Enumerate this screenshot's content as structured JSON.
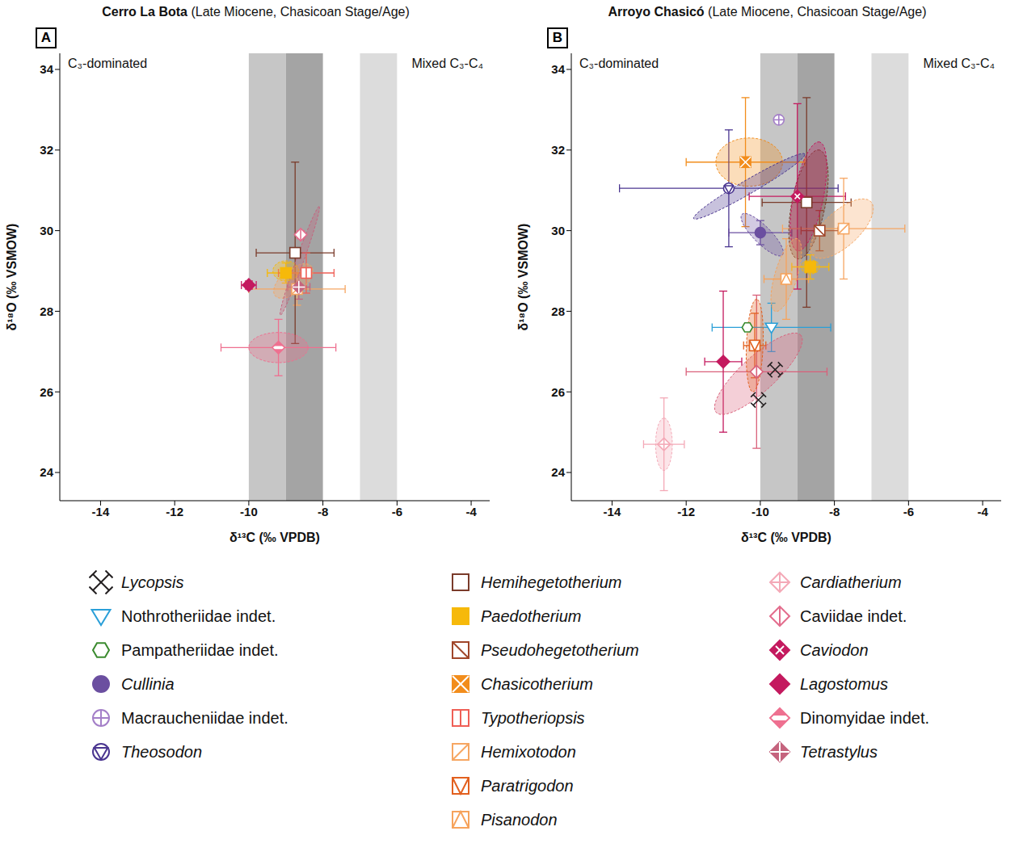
{
  "chart_data": [
    {
      "type": "scatter",
      "panel": "A",
      "title": "Cerro La Bota",
      "subtitle": "(Late Miocene, Chasicoan Stage/Age)",
      "annotations": [
        "C₃-dominated",
        "Mixed C₃-C₄"
      ],
      "x_label": "δ¹³C (‰ VPDB)",
      "y_label": "δ¹⁸O (‰ VSMOW)",
      "xlim": [
        -15.1,
        -3.5
      ],
      "xticks": [
        -14,
        -12,
        -10,
        -8,
        -6,
        -4
      ],
      "ylim": [
        23.3,
        34.4
      ],
      "yticks": [
        24,
        26,
        28,
        30,
        32,
        34
      ],
      "bands": [
        {
          "x": [
            -10,
            -9
          ],
          "color": "#c6c6c6"
        },
        {
          "x": [
            -9,
            -8
          ],
          "color": "#a4a4a4"
        },
        {
          "x": [
            -7,
            -6
          ],
          "color": "#dcdcdc"
        }
      ],
      "series": [
        {
          "name": "Dinomyidae indet.",
          "color": "#ee7090",
          "marker": "diamond_hband",
          "values": [
            {
              "x": -9.2,
              "y": 27.1,
              "x_error": 1.55,
              "y_error": 0.7
            }
          ],
          "ellipse": {
            "from": [
              -10.0,
              27.1
            ],
            "to": [
              -8.4,
              27.1
            ],
            "width": 0.75
          }
        },
        {
          "name": "Hemixotodon",
          "color": "#f6a662",
          "marker": "square_slash",
          "values": [
            {
              "x": -8.7,
              "y": 28.55,
              "x_error": 1.3,
              "y_error": 0.4
            }
          ],
          "ellipse": {
            "from": [
              -9.3,
              28.4
            ],
            "to": [
              -8.3,
              29.1
            ],
            "width": 0.6
          }
        },
        {
          "name": "Paedotherium",
          "color": "#f6b90a",
          "marker": "square_filled",
          "values": [
            {
              "x": -9.0,
              "y": 28.95,
              "x_error": 0.5,
              "y_error": 0.25
            }
          ],
          "ellipse": {
            "from": [
              -9.35,
              29.0
            ],
            "to": [
              -8.65,
              29.0
            ],
            "width": 0.5
          }
        },
        {
          "name": "Tetrastylus",
          "color": "#c5647e",
          "marker": "diamond_cross_filled",
          "values": [
            {
              "x": -8.65,
              "y": 28.6,
              "x_error": 0.3,
              "y_error": 0.3
            }
          ],
          "ellipse": {
            "from": [
              -9.15,
              27.9
            ],
            "to": [
              -8.1,
              30.6
            ],
            "width": 0.2
          }
        },
        {
          "name": "Hemihegetotherium",
          "color": "#7a3b2a",
          "marker": "square",
          "values": [
            {
              "x": -8.75,
              "y": 29.45,
              "x_error": 1.05,
              "y_error": 2.25
            }
          ]
        },
        {
          "name": "Typotheriopsis",
          "color": "#ef5f56",
          "marker": "square_vline",
          "values": [
            {
              "x": -8.45,
              "y": 28.95,
              "x_error": 0.75,
              "y_error": 0.5
            }
          ]
        },
        {
          "name": "Caviidae indet.",
          "color": "#e36d8d",
          "marker": "diamond_vline",
          "values": [
            {
              "x": -8.6,
              "y": 29.9,
              "x_error": 0.1,
              "y_error": 0.1
            }
          ]
        },
        {
          "name": "Lagostomus",
          "color": "#c41a5f",
          "marker": "diamond_filled",
          "values": [
            {
              "x": -10.0,
              "y": 28.65,
              "x_error": 0.2,
              "y_error": 0.1
            }
          ]
        }
      ]
    },
    {
      "type": "scatter",
      "panel": "B",
      "title": "Arroyo Chasicó",
      "subtitle": "(Late Miocene, Chasicoan Stage/Age)",
      "annotations": [
        "C₃-dominated",
        "Mixed C₃-C₄"
      ],
      "x_label": "δ¹³C (‰ VPDB)",
      "y_label": "δ¹⁸O (‰ VSMOW)",
      "xlim": [
        -15.1,
        -3.5
      ],
      "xticks": [
        -14,
        -12,
        -10,
        -8,
        -6,
        -4
      ],
      "ylim": [
        23.3,
        34.4
      ],
      "yticks": [
        24,
        26,
        28,
        30,
        32,
        34
      ],
      "bands": [
        {
          "x": [
            -10,
            -9
          ],
          "color": "#c6c6c6"
        },
        {
          "x": [
            -9,
            -8
          ],
          "color": "#a4a4a4"
        },
        {
          "x": [
            -7,
            -6
          ],
          "color": "#dcdcdc"
        }
      ],
      "series": [
        {
          "name": "Caviidae indet.",
          "color": "#d9607a",
          "marker": "diamond_vline",
          "values": [
            {
              "x": -10.1,
              "y": 26.5,
              "x_error": 1.9,
              "y_error": 1.9
            }
          ],
          "ellipse": {
            "from": [
              -11.2,
              25.5
            ],
            "to": [
              -8.9,
              27.4
            ],
            "width": 0.9
          }
        },
        {
          "name": "Cardiatherium",
          "color": "#f4a9b7",
          "marker": "diamond_plus",
          "values": [
            {
              "x": -12.6,
              "y": 24.7,
              "x_error": 0.55,
              "y_error": 1.15
            }
          ],
          "ellipse": {
            "from": [
              -12.6,
              24.05
            ],
            "to": [
              -12.6,
              25.35
            ],
            "width": 0.45
          }
        },
        {
          "name": "Paratrigodon",
          "color": "#e2601f",
          "marker": "square_v",
          "values": [
            {
              "x": -10.15,
              "y": 27.15,
              "x_error": 0.3,
              "y_error": 0.8
            }
          ],
          "ellipse": {
            "from": [
              -10.2,
              26.0
            ],
            "to": [
              -10.1,
              28.3
            ],
            "width": 0.45
          }
        },
        {
          "name": "Chasicotherium",
          "color": "#f28d1c",
          "marker": "square_x",
          "values": [
            {
              "x": -10.4,
              "y": 31.7,
              "x_error": 1.6,
              "y_error": 1.6
            }
          ],
          "ellipse": {
            "from": [
              -11.2,
              31.7
            ],
            "to": [
              -9.4,
              31.7
            ],
            "width": 1.2
          }
        },
        {
          "name": "Theosodon",
          "color": "#4a3590",
          "marker": "circle_triangle",
          "values": [
            {
              "x": -10.85,
              "y": 31.05,
              "x_error": 2.95,
              "y_error": 1.45
            }
          ],
          "ellipse": {
            "from": [
              -11.8,
              30.3
            ],
            "to": [
              -8.8,
              31.9
            ],
            "width": 0.35
          }
        },
        {
          "name": "Cullinia",
          "color": "#6b4fa0",
          "marker": "circle_filled",
          "values": [
            {
              "x": -10.0,
              "y": 29.95,
              "x_error": 0.85,
              "y_error": 0.3
            }
          ],
          "ellipse": {
            "from": [
              -10.5,
              30.4
            ],
            "to": [
              -9.4,
              29.4
            ],
            "width": 0.45
          }
        },
        {
          "name": "Hemihegetotherium",
          "color": "#7a3b2a",
          "marker": "square",
          "values": [
            {
              "x": -8.75,
              "y": 30.7,
              "x_error": 1.2,
              "y_error": 2.6
            }
          ],
          "ellipse": {
            "from": [
              -9.0,
              29.3
            ],
            "to": [
              -8.4,
              32.0
            ],
            "width": 0.9
          }
        },
        {
          "name": "Caviodon",
          "color": "#c41a5f",
          "marker": "diamond_x_filled",
          "values": [
            {
              "x": -9.0,
              "y": 30.85,
              "x_error": 1.3,
              "y_error": 2.3
            }
          ],
          "ellipse": {
            "from": [
              -9.0,
              29.5
            ],
            "to": [
              -8.4,
              32.2
            ],
            "width": 0.8
          }
        },
        {
          "name": "Hemixotodon",
          "color": "#f6a662",
          "marker": "square_slash",
          "values": [
            {
              "x": -7.75,
              "y": 30.05,
              "x_error": 1.65,
              "y_error": 1.25
            }
          ],
          "ellipse": {
            "from": [
              -8.6,
              29.4
            ],
            "to": [
              -7.0,
              30.7
            ],
            "width": 0.9
          }
        },
        {
          "name": "Pisanodon",
          "color": "#f6a35c",
          "marker": "square_caret",
          "values": [
            {
              "x": -9.3,
              "y": 28.8,
              "x_error": 0.6,
              "y_error": 1.0
            }
          ],
          "ellipse": {
            "from": [
              -9.6,
              28.0
            ],
            "to": [
              -9.0,
              29.8
            ],
            "width": 0.6
          }
        },
        {
          "name": "Paedotherium",
          "color": "#f6b90a",
          "marker": "square_filled",
          "values": [
            {
              "x": -8.65,
              "y": 29.1,
              "x_error": 0.5,
              "y_error": 0.3
            }
          ],
          "ellipse": {
            "from": [
              -8.9,
              29.1
            ],
            "to": [
              -8.4,
              29.1
            ],
            "width": 0.35
          }
        },
        {
          "name": "Pseudohegetotherium",
          "color": "#a0462a",
          "marker": "square_backslash",
          "values": [
            {
              "x": -8.4,
              "y": 30.0,
              "x_error": 0.5,
              "y_error": 0.5
            }
          ]
        },
        {
          "name": "Macraucheniidae indet.",
          "color": "#a47fc8",
          "marker": "circle_plus",
          "values": [
            {
              "x": -9.5,
              "y": 32.75
            }
          ]
        },
        {
          "name": "Nothrotheriidae indet.",
          "color": "#2a9fd8",
          "marker": "triangle_down",
          "values": [
            {
              "x": -9.7,
              "y": 27.6,
              "x_error": 1.6,
              "y_error": 0.6
            }
          ]
        },
        {
          "name": "Pampatheriidae indet.",
          "color": "#3a8a2e",
          "marker": "hexagon",
          "values": [
            {
              "x": -10.35,
              "y": 27.6
            }
          ]
        },
        {
          "name": "Lagostomus",
          "color": "#c41a5f",
          "marker": "diamond_filled",
          "values": [
            {
              "x": -11.0,
              "y": 26.75,
              "x_error": 0.5,
              "y_error": 1.75
            }
          ]
        },
        {
          "name": "Lycopsis",
          "color": "#231f20",
          "marker": "arrows_x",
          "values": [
            {
              "x": -9.6,
              "y": 26.55
            },
            {
              "x": -10.05,
              "y": 25.8
            }
          ]
        }
      ]
    }
  ],
  "legend_columns": [
    [
      "Lycopsis",
      "Nothrotheriidae indet.",
      "Pampatheriidae indet.",
      "Cullinia",
      "Macraucheniidae indet.",
      "Theosodon"
    ],
    [
      "Hemihegetotherium",
      "Paedotherium",
      "Pseudohegetotherium",
      "Chasicotherium",
      "Typotheriopsis",
      "Hemixotodon",
      "Paratrigodon",
      "Pisanodon"
    ],
    [
      "Cardiatherium",
      "Caviidae indet.",
      "Caviodon",
      "Lagostomus",
      "Dinomyidae indet.",
      "Tetrastylus"
    ]
  ]
}
